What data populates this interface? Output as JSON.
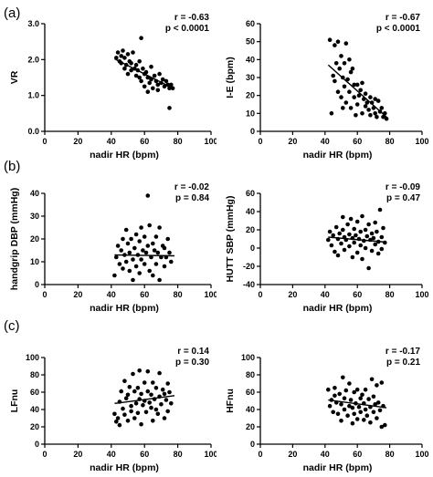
{
  "panel_labels": [
    "(a)",
    "(b)",
    "(c)"
  ],
  "chart_data": [
    {
      "type": "scatter",
      "panel": "(a)",
      "xlabel": "nadir HR (bpm)",
      "ylabel": "VR",
      "xlim": [
        0,
        100
      ],
      "ylim": [
        0.0,
        3.0
      ],
      "xticks": [
        "0",
        "20",
        "40",
        "60",
        "80",
        "100"
      ],
      "yticks": [
        "0.0",
        "1.0",
        "2.0",
        "3.0"
      ],
      "stat_r": "r = -0.63",
      "stat_p": "p < 0.0001",
      "trend": [
        [
          42,
          2.02
        ],
        [
          78,
          1.18
        ]
      ],
      "points": [
        [
          43,
          2.05
        ],
        [
          44,
          2.2
        ],
        [
          45,
          1.95
        ],
        [
          46,
          1.9
        ],
        [
          46,
          2.1
        ],
        [
          47,
          2.25
        ],
        [
          48,
          1.75
        ],
        [
          48,
          2.05
        ],
        [
          49,
          1.85
        ],
        [
          50,
          2.15
        ],
        [
          50,
          1.6
        ],
        [
          51,
          1.95
        ],
        [
          52,
          1.7
        ],
        [
          52,
          1.9
        ],
        [
          53,
          2.2
        ],
        [
          54,
          1.75
        ],
        [
          55,
          1.85
        ],
        [
          55,
          1.55
        ],
        [
          56,
          1.7
        ],
        [
          57,
          1.5
        ],
        [
          57,
          1.95
        ],
        [
          58,
          2.6
        ],
        [
          58,
          1.4
        ],
        [
          59,
          1.75
        ],
        [
          60,
          1.6
        ],
        [
          60,
          1.25
        ],
        [
          61,
          1.65
        ],
        [
          62,
          1.5
        ],
        [
          62,
          1.1
        ],
        [
          63,
          1.35
        ],
        [
          64,
          1.8
        ],
        [
          64,
          1.45
        ],
        [
          65,
          1.2
        ],
        [
          66,
          1.55
        ],
        [
          67,
          1.4
        ],
        [
          68,
          1.3
        ],
        [
          68,
          1.15
        ],
        [
          69,
          1.6
        ],
        [
          70,
          1.35
        ],
        [
          71,
          1.45
        ],
        [
          72,
          1.25
        ],
        [
          73,
          1.4
        ],
        [
          74,
          1.3
        ],
        [
          75,
          1.2
        ],
        [
          75,
          0.65
        ],
        [
          76,
          1.3
        ],
        [
          77,
          1.2
        ]
      ]
    },
    {
      "type": "scatter",
      "panel": "(a)",
      "xlabel": "nadir HR (bpm)",
      "ylabel": "I-E (bpm)",
      "xlim": [
        0,
        100
      ],
      "ylim": [
        0,
        60
      ],
      "xticks": [
        "0",
        "20",
        "40",
        "60",
        "80",
        "100"
      ],
      "yticks": [
        "0",
        "10",
        "20",
        "30",
        "40",
        "50",
        "60"
      ],
      "stat_r": "r = -0.67",
      "stat_p": "p < 0.0001",
      "trend": [
        [
          42,
          37
        ],
        [
          78,
          8
        ]
      ],
      "points": [
        [
          43,
          51
        ],
        [
          44,
          10
        ],
        [
          45,
          31
        ],
        [
          46,
          28
        ],
        [
          46,
          48
        ],
        [
          47,
          38
        ],
        [
          48,
          50
        ],
        [
          48,
          22
        ],
        [
          49,
          35
        ],
        [
          50,
          19
        ],
        [
          50,
          42
        ],
        [
          51,
          13
        ],
        [
          51,
          30
        ],
        [
          52,
          25
        ],
        [
          52,
          38
        ],
        [
          53,
          49
        ],
        [
          53,
          16
        ],
        [
          54,
          29
        ],
        [
          55,
          40
        ],
        [
          55,
          22
        ],
        [
          56,
          33
        ],
        [
          56,
          13
        ],
        [
          57,
          35
        ],
        [
          58,
          26
        ],
        [
          58,
          19
        ],
        [
          59,
          9
        ],
        [
          60,
          26
        ],
        [
          60,
          15
        ],
        [
          61,
          20
        ],
        [
          62,
          23
        ],
        [
          63,
          27
        ],
        [
          63,
          10
        ],
        [
          64,
          18
        ],
        [
          65,
          14
        ],
        [
          65,
          21
        ],
        [
          66,
          16
        ],
        [
          67,
          12
        ],
        [
          68,
          19
        ],
        [
          68,
          9
        ],
        [
          69,
          16
        ],
        [
          70,
          13
        ],
        [
          71,
          10
        ],
        [
          71,
          18
        ],
        [
          72,
          8
        ],
        [
          73,
          17
        ],
        [
          74,
          11
        ],
        [
          75,
          13
        ],
        [
          76,
          8
        ],
        [
          77,
          10
        ],
        [
          78,
          7
        ]
      ]
    },
    {
      "type": "scatter",
      "panel": "(b)",
      "xlabel": "nadir HR (bpm)",
      "ylabel": "handgrip DBP (mmHg)",
      "xlim": [
        0,
        100
      ],
      "ylim": [
        0,
        40
      ],
      "xticks": [
        "0",
        "20",
        "40",
        "60",
        "80",
        "100"
      ],
      "yticks": [
        "0",
        "10",
        "20",
        "30",
        "40"
      ],
      "stat_r": "r = -0.02",
      "stat_p": "p = 0.84",
      "trend": [
        [
          42,
          13
        ],
        [
          78,
          12.6
        ]
      ],
      "points": [
        [
          42,
          4
        ],
        [
          43,
          12
        ],
        [
          44,
          17
        ],
        [
          45,
          9
        ],
        [
          46,
          15
        ],
        [
          47,
          20
        ],
        [
          47,
          7
        ],
        [
          48,
          13
        ],
        [
          49,
          24
        ],
        [
          49,
          10
        ],
        [
          50,
          18
        ],
        [
          51,
          6
        ],
        [
          51,
          14
        ],
        [
          52,
          20
        ],
        [
          53,
          11
        ],
        [
          53,
          2
        ],
        [
          54,
          16
        ],
        [
          55,
          22
        ],
        [
          55,
          8
        ],
        [
          56,
          13
        ],
        [
          57,
          19
        ],
        [
          57,
          5
        ],
        [
          58,
          25
        ],
        [
          58,
          11
        ],
        [
          59,
          15
        ],
        [
          60,
          9
        ],
        [
          60,
          21
        ],
        [
          61,
          14
        ],
        [
          62,
          39
        ],
        [
          62,
          17
        ],
        [
          63,
          6
        ],
        [
          63,
          26
        ],
        [
          64,
          12
        ],
        [
          65,
          18
        ],
        [
          65,
          4
        ],
        [
          66,
          15
        ],
        [
          67,
          21
        ],
        [
          67,
          9
        ],
        [
          68,
          14
        ],
        [
          69,
          25
        ],
        [
          69,
          2
        ],
        [
          70,
          12
        ],
        [
          71,
          17
        ],
        [
          72,
          8
        ],
        [
          72,
          16
        ],
        [
          73,
          12
        ],
        [
          74,
          20
        ],
        [
          75,
          14
        ],
        [
          76,
          10
        ]
      ]
    },
    {
      "type": "scatter",
      "panel": "(b)",
      "xlabel": "nadir HR (bpm)",
      "ylabel": "HUTT SBP (mmHg)",
      "xlim": [
        0,
        100
      ],
      "ylim": [
        -40,
        60
      ],
      "xticks": [
        "0",
        "20",
        "40",
        "60",
        "80",
        "100"
      ],
      "yticks": [
        "-40",
        "-20",
        "0",
        "20",
        "40",
        "60"
      ],
      "stat_r": "r = -0.09",
      "stat_p": "p = 0.47",
      "trend": [
        [
          42,
          12
        ],
        [
          78,
          6.5
        ]
      ],
      "points": [
        [
          42,
          9
        ],
        [
          43,
          18
        ],
        [
          44,
          3
        ],
        [
          45,
          14
        ],
        [
          46,
          -4
        ],
        [
          47,
          23
        ],
        [
          48,
          10
        ],
        [
          48,
          -8
        ],
        [
          49,
          16
        ],
        [
          50,
          5
        ],
        [
          51,
          20
        ],
        [
          51,
          34
        ],
        [
          52,
          12
        ],
        [
          52,
          -2
        ],
        [
          53,
          9
        ],
        [
          54,
          26
        ],
        [
          55,
          15
        ],
        [
          55,
          2
        ],
        [
          56,
          32
        ],
        [
          57,
          11
        ],
        [
          57,
          -10
        ],
        [
          58,
          21
        ],
        [
          58,
          6
        ],
        [
          59,
          14
        ],
        [
          60,
          -5
        ],
        [
          60,
          29
        ],
        [
          61,
          10
        ],
        [
          62,
          18
        ],
        [
          62,
          3
        ],
        [
          63,
          -12
        ],
        [
          63,
          35
        ],
        [
          64,
          8
        ],
        [
          65,
          20
        ],
        [
          65,
          0
        ],
        [
          66,
          13
        ],
        [
          67,
          -22
        ],
        [
          67,
          26
        ],
        [
          68,
          9
        ],
        [
          69,
          16
        ],
        [
          69,
          -3
        ],
        [
          70,
          11
        ],
        [
          71,
          28
        ],
        [
          71,
          4
        ],
        [
          72,
          18
        ],
        [
          73,
          -6
        ],
        [
          73,
          7
        ],
        [
          74,
          42
        ],
        [
          75,
          12
        ],
        [
          75,
          -1
        ],
        [
          76,
          22
        ],
        [
          77,
          6
        ]
      ]
    },
    {
      "type": "scatter",
      "panel": "(c)",
      "xlabel": "nadir HR (bpm)",
      "ylabel": "LFnu",
      "xlim": [
        0,
        100
      ],
      "ylim": [
        0,
        100
      ],
      "xticks": [
        "0",
        "20",
        "40",
        "60",
        "80",
        "100"
      ],
      "yticks": [
        "0",
        "20",
        "40",
        "60",
        "80",
        "100"
      ],
      "stat_r": "r = 0.14",
      "stat_p": "p = 0.30",
      "trend": [
        [
          42,
          47
        ],
        [
          78,
          56
        ]
      ],
      "points": [
        [
          42,
          35
        ],
        [
          43,
          26
        ],
        [
          44,
          30
        ],
        [
          45,
          22
        ],
        [
          45,
          49
        ],
        [
          46,
          61
        ],
        [
          47,
          41
        ],
        [
          48,
          34
        ],
        [
          48,
          73
        ],
        [
          49,
          53
        ],
        [
          50,
          27
        ],
        [
          50,
          57
        ],
        [
          51,
          66
        ],
        [
          52,
          44
        ],
        [
          52,
          38
        ],
        [
          53,
          81
        ],
        [
          54,
          61
        ],
        [
          54,
          30
        ],
        [
          55,
          47
        ],
        [
          56,
          65
        ],
        [
          56,
          36
        ],
        [
          57,
          85
        ],
        [
          57,
          52
        ],
        [
          58,
          58
        ],
        [
          58,
          23
        ],
        [
          59,
          45
        ],
        [
          60,
          71
        ],
        [
          60,
          50
        ],
        [
          61,
          37
        ],
        [
          62,
          61
        ],
        [
          62,
          84
        ],
        [
          63,
          48
        ],
        [
          64,
          42
        ],
        [
          64,
          57
        ],
        [
          65,
          27
        ],
        [
          65,
          71
        ],
        [
          66,
          52
        ],
        [
          67,
          65
        ],
        [
          67,
          40
        ],
        [
          68,
          35
        ],
        [
          69,
          82
        ],
        [
          69,
          55
        ],
        [
          70,
          46
        ],
        [
          71,
          63
        ],
        [
          72,
          30
        ],
        [
          72,
          58
        ],
        [
          73,
          51
        ],
        [
          74,
          38
        ],
        [
          74,
          70
        ],
        [
          75,
          60
        ],
        [
          76,
          47
        ]
      ]
    },
    {
      "type": "scatter",
      "panel": "(c)",
      "xlabel": "nadir HR (bpm)",
      "ylabel": "HFnu",
      "xlim": [
        0,
        100
      ],
      "ylim": [
        0,
        100
      ],
      "xticks": [
        "0",
        "20",
        "40",
        "60",
        "80",
        "100"
      ],
      "yticks": [
        "0",
        "20",
        "40",
        "60",
        "80",
        "100"
      ],
      "stat_r": "r = -0.17",
      "stat_p": "p = 0.21",
      "trend": [
        [
          42,
          51
        ],
        [
          78,
          42
        ]
      ],
      "points": [
        [
          42,
          63
        ],
        [
          43,
          44
        ],
        [
          44,
          51
        ],
        [
          45,
          37
        ],
        [
          46,
          56
        ],
        [
          46,
          65
        ],
        [
          47,
          48
        ],
        [
          48,
          35
        ],
        [
          49,
          58
        ],
        [
          50,
          27
        ],
        [
          50,
          46
        ],
        [
          51,
          77
        ],
        [
          52,
          53
        ],
        [
          52,
          40
        ],
        [
          53,
          62
        ],
        [
          54,
          33
        ],
        [
          55,
          44
        ],
        [
          55,
          70
        ],
        [
          56,
          51
        ],
        [
          57,
          24
        ],
        [
          57,
          42
        ],
        [
          58,
          60
        ],
        [
          58,
          35
        ],
        [
          59,
          47
        ],
        [
          60,
          63
        ],
        [
          60,
          29
        ],
        [
          61,
          43
        ],
        [
          62,
          53
        ],
        [
          62,
          37
        ],
        [
          63,
          57
        ],
        [
          64,
          28
        ],
        [
          64,
          47
        ],
        [
          65,
          40
        ],
        [
          65,
          63
        ],
        [
          66,
          33
        ],
        [
          67,
          52
        ],
        [
          68,
          43
        ],
        [
          68,
          25
        ],
        [
          69,
          75
        ],
        [
          70,
          37
        ],
        [
          70,
          55
        ],
        [
          71,
          46
        ],
        [
          72,
          30
        ],
        [
          72,
          68
        ],
        [
          73,
          48
        ],
        [
          74,
          39
        ],
        [
          75,
          71
        ],
        [
          75,
          20
        ],
        [
          76,
          44
        ],
        [
          77,
          22
        ]
      ]
    }
  ]
}
